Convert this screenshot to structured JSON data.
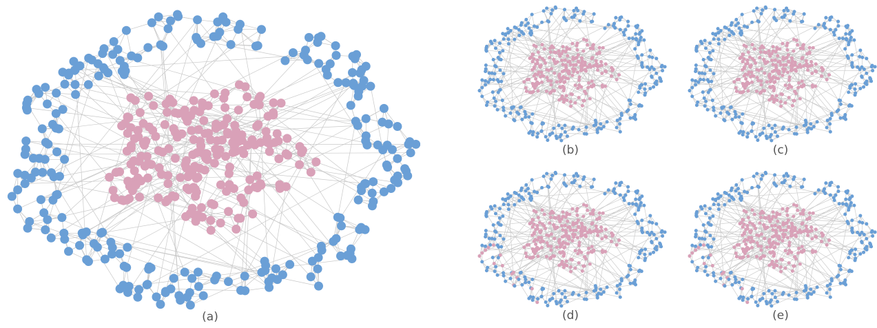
{
  "colors": {
    "edge": "#c8c8c8",
    "outer_node": "#6a9fd6",
    "inner_node": "#d9a1b8",
    "caption": "#555555"
  },
  "panels": [
    {
      "id": "a",
      "caption": "(a)"
    },
    {
      "id": "b",
      "caption": "(b)"
    },
    {
      "id": "c",
      "caption": "(c)"
    },
    {
      "id": "d",
      "caption": "(d)"
    },
    {
      "id": "e",
      "caption": "(e)"
    }
  ]
}
